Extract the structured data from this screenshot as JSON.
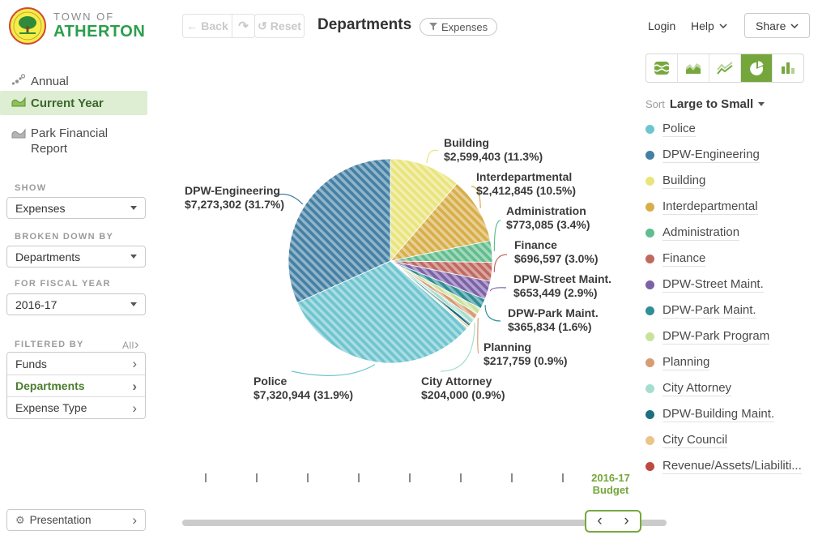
{
  "brand": {
    "town_of": "TOWN OF",
    "name": "ATHERTON"
  },
  "toolbar": {
    "back": "Back",
    "reset": "Reset",
    "title": "Departments",
    "filter_pill": "Expenses"
  },
  "topnav": {
    "login": "Login",
    "help": "Help",
    "share": "Share"
  },
  "icons": {
    "back_arrow": "←",
    "redo_arrow": "↷",
    "reset_arrow": "↺",
    "gear": "⚙",
    "chevron_right": "›",
    "prev_arrow": "‹",
    "next_arrow": "›"
  },
  "sidebar": {
    "views": [
      {
        "label": "Annual",
        "active": false
      },
      {
        "label": "Current Year",
        "active": true
      },
      {
        "label": "Park Financial Report",
        "active": false
      }
    ],
    "show": {
      "label": "SHOW",
      "value": "Expenses"
    },
    "broken_down_by": {
      "label": "BROKEN DOWN BY",
      "value": "Departments"
    },
    "fiscal_year": {
      "label": "FOR FISCAL YEAR",
      "value": "2016-17"
    },
    "filtered_by": {
      "label": "FILTERED BY",
      "all": "All",
      "filters": [
        "Funds",
        "Departments",
        "Expense Type"
      ],
      "active_filter": "Departments"
    },
    "presentation": "Presentation"
  },
  "chart_controls": {
    "sort_label": "Sort",
    "sort_value": "Large to Small",
    "types": [
      "stacked-area",
      "area",
      "line",
      "pie",
      "bar"
    ],
    "selected_type": "pie"
  },
  "chart_data": {
    "type": "pie",
    "title": "Departments",
    "measure": "Expenses",
    "period": "2016-17 Budget",
    "sort": "Large to Small",
    "legend_position": "right",
    "slices": [
      {
        "name": "Police",
        "amount": "$7,320,944",
        "pct_label": "31.9%",
        "pct": 31.9,
        "color": "#6ec5cf"
      },
      {
        "name": "DPW-Engineering",
        "amount": "$7,273,302",
        "pct_label": "31.7%",
        "pct": 31.7,
        "color": "#4480a4"
      },
      {
        "name": "Building",
        "amount": "$2,599,403",
        "pct_label": "11.3%",
        "pct": 11.3,
        "color": "#e9e47b"
      },
      {
        "name": "Interdepartmental",
        "amount": "$2,412,845",
        "pct_label": "10.5%",
        "pct": 10.5,
        "color": "#d7ae49"
      },
      {
        "name": "Administration",
        "amount": "$773,085",
        "pct_label": "3.4%",
        "pct": 3.4,
        "color": "#61bd8d"
      },
      {
        "name": "Finance",
        "amount": "$696,597",
        "pct_label": "3.0%",
        "pct": 3.0,
        "color": "#c0685f"
      },
      {
        "name": "DPW-Street Maint.",
        "amount": "$653,449",
        "pct_label": "2.9%",
        "pct": 2.9,
        "color": "#7c60a8"
      },
      {
        "name": "DPW-Park Maint.",
        "amount": "$365,834",
        "pct_label": "1.6%",
        "pct": 1.6,
        "color": "#2f8e96"
      },
      {
        "name": "DPW-Park Program",
        "amount": null,
        "pct_label": null,
        "pct": 1.0,
        "color": "#c9e29b",
        "estimated": true
      },
      {
        "name": "Planning",
        "amount": "$217,759",
        "pct_label": "0.9%",
        "pct": 0.9,
        "color": "#d69c74"
      },
      {
        "name": "City Attorney",
        "amount": "$204,000",
        "pct_label": "0.9%",
        "pct": 0.9,
        "color": "#a5decf"
      },
      {
        "name": "DPW-Building Maint.",
        "amount": null,
        "pct_label": null,
        "pct": 0.5,
        "color": "#1d6f80",
        "estimated": true
      },
      {
        "name": "City Council",
        "amount": null,
        "pct_label": null,
        "pct": 0.3,
        "color": "#ecc489",
        "estimated": true
      },
      {
        "name": "Revenue/Assets/Liabiliti...",
        "amount": null,
        "pct_label": null,
        "pct": 0.1,
        "color": "#bb4a40",
        "estimated": true
      }
    ]
  },
  "timeline": {
    "tick_count": 8,
    "period_line1": "2016-17",
    "period_line2": "Budget"
  }
}
